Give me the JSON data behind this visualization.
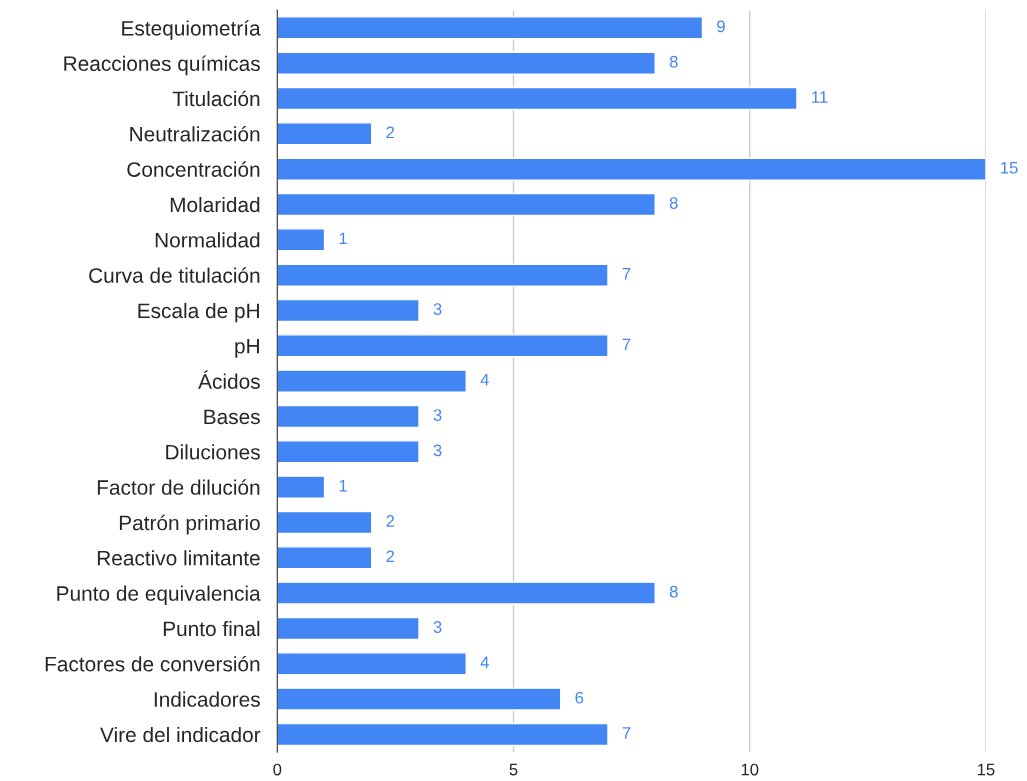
{
  "chart_data": {
    "type": "bar",
    "orientation": "horizontal",
    "categories": [
      "Estequiometría",
      "Reacciones químicas",
      "Titulación",
      "Neutralización",
      "Concentración",
      "Molaridad",
      "Normalidad",
      "Curva de titulación",
      "Escala de pH",
      "pH",
      "Ácidos",
      "Bases",
      "Diluciones",
      "Factor de dilución",
      "Patrón primario",
      "Reactivo limitante",
      "Punto de equivalencia",
      "Punto final",
      "Factores de conversión",
      "Indicadores",
      "Vire del indicador"
    ],
    "values": [
      9,
      8,
      11,
      2,
      15,
      8,
      1,
      7,
      3,
      7,
      4,
      3,
      3,
      1,
      2,
      2,
      8,
      3,
      4,
      6,
      7
    ],
    "color": "#4285f4",
    "xlim": [
      0,
      15
    ],
    "xticks": [
      0,
      5,
      10,
      15
    ],
    "grid": "x",
    "data_labels": true
  }
}
